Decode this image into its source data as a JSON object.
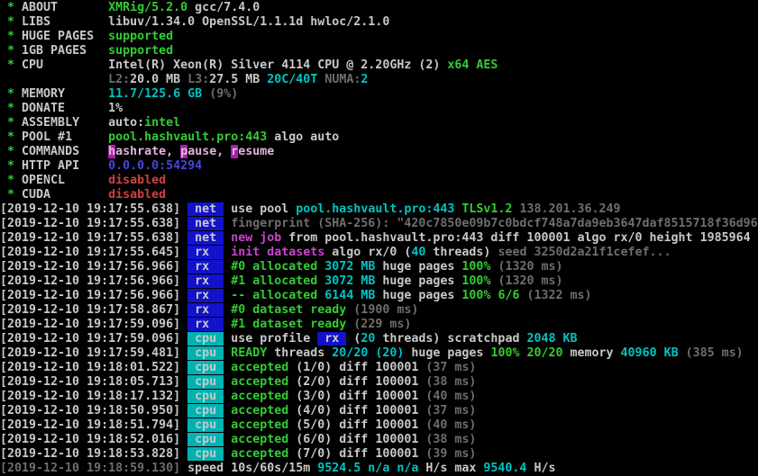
{
  "palette": {
    "white": "#c9c9c9",
    "gray": "#6e6e6e",
    "green": "#33cc33",
    "cyan": "#00c4c4",
    "magenta": "#cc44cc",
    "lightMagenta": "#dcb4dc",
    "red": "#cf4242",
    "blue": "#4646dc",
    "netBadgeBg": "#1212cc",
    "cpuBadgeBg": "#00b3b3",
    "keyBg": "#b517b5"
  },
  "terminal": {
    "app": "xmrig-miner-console",
    "summary_lines": [
      [
        {
          "t": " * ",
          "c": "green"
        },
        {
          "t": "ABOUT       ",
          "c": "white"
        },
        {
          "t": "XMRig/5.2.0",
          "c": "green"
        },
        {
          "t": " gcc/7.4.0",
          "c": "white"
        }
      ],
      [
        {
          "t": " * ",
          "c": "green"
        },
        {
          "t": "LIBS        ",
          "c": "white"
        },
        {
          "t": "libuv/1.34.0 OpenSSL/1.1.1d hwloc/2.1.0",
          "c": "white"
        }
      ],
      [
        {
          "t": " * ",
          "c": "green"
        },
        {
          "t": "HUGE PAGES  ",
          "c": "white"
        },
        {
          "t": "supported",
          "c": "green"
        }
      ],
      [
        {
          "t": " * ",
          "c": "green"
        },
        {
          "t": "1GB PAGES   ",
          "c": "white"
        },
        {
          "t": "supported",
          "c": "green"
        }
      ],
      [
        {
          "t": " * ",
          "c": "green"
        },
        {
          "t": "CPU         ",
          "c": "white"
        },
        {
          "t": "Intel(R) Xeon(R) Silver 4114 CPU @ 2.20GHz (2) ",
          "c": "white"
        },
        {
          "t": "x64 AES",
          "c": "green"
        }
      ],
      [
        {
          "t": "               ",
          "c": "white"
        },
        {
          "t": "L2:",
          "c": "gray"
        },
        {
          "t": "20.0 MB",
          "c": "white"
        },
        {
          "t": " ",
          "c": "white"
        },
        {
          "t": "L3:",
          "c": "gray"
        },
        {
          "t": "27.5 MB",
          "c": "white"
        },
        {
          "t": " ",
          "c": "white"
        },
        {
          "t": "20C/40T",
          "c": "cyan"
        },
        {
          "t": " ",
          "c": "white"
        },
        {
          "t": "NUMA:",
          "c": "gray"
        },
        {
          "t": "2",
          "c": "cyan"
        }
      ],
      [
        {
          "t": " * ",
          "c": "green"
        },
        {
          "t": "MEMORY      ",
          "c": "white"
        },
        {
          "t": "11.7/125.6 GB",
          "c": "cyan"
        },
        {
          "t": " (9%)",
          "c": "gray"
        }
      ],
      [
        {
          "t": " * ",
          "c": "green"
        },
        {
          "t": "DONATE      ",
          "c": "white"
        },
        {
          "t": "1%",
          "c": "white"
        }
      ],
      [
        {
          "t": " * ",
          "c": "green"
        },
        {
          "t": "ASSEMBLY    ",
          "c": "white"
        },
        {
          "t": "auto:",
          "c": "white"
        },
        {
          "t": "intel",
          "c": "green"
        }
      ],
      [
        {
          "t": " * ",
          "c": "green"
        },
        {
          "t": "POOL #1     ",
          "c": "white"
        },
        {
          "t": "pool.hashvault.pro:443",
          "c": "green"
        },
        {
          "t": " algo auto",
          "c": "white"
        }
      ],
      [
        {
          "t": " * ",
          "c": "green"
        },
        {
          "t": "COMMANDS    ",
          "c": "white"
        },
        {
          "t": "h",
          "c": "white",
          "bg": "keyBg",
          "name": "hashrate-command-key"
        },
        {
          "t": "ashrate, ",
          "c": "lightMagenta"
        },
        {
          "t": "p",
          "c": "white",
          "bg": "keyBg",
          "name": "pause-command-key"
        },
        {
          "t": "ause, ",
          "c": "lightMagenta"
        },
        {
          "t": "r",
          "c": "white",
          "bg": "keyBg",
          "name": "resume-command-key"
        },
        {
          "t": "esume",
          "c": "lightMagenta"
        }
      ],
      [
        {
          "t": " * ",
          "c": "green"
        },
        {
          "t": "HTTP API    ",
          "c": "white"
        },
        {
          "t": "0.0.0.0:54294",
          "c": "blue"
        }
      ],
      [
        {
          "t": " * ",
          "c": "green"
        },
        {
          "t": "OPENCL      ",
          "c": "white"
        },
        {
          "t": "disabled",
          "c": "red"
        }
      ],
      [
        {
          "t": " * ",
          "c": "green"
        },
        {
          "t": "CUDA        ",
          "c": "white"
        },
        {
          "t": "disabled",
          "c": "red"
        }
      ]
    ],
    "log_lines": [
      [
        {
          "t": "[2019-12-10 19:17:55.638]",
          "c": "white"
        },
        {
          "t": " ",
          "c": "white"
        },
        {
          "t": " net ",
          "c": "white",
          "bg": "netBadgeBg",
          "name": "net-tag"
        },
        {
          "t": " ",
          "c": "white"
        },
        {
          "t": "use pool ",
          "c": "white"
        },
        {
          "t": "pool.hashvault.pro:443 ",
          "c": "cyan"
        },
        {
          "t": "TLSv1.2 ",
          "c": "green"
        },
        {
          "t": "138.201.36.249",
          "c": "gray"
        }
      ],
      [
        {
          "t": "[2019-12-10 19:17:55.638]",
          "c": "white"
        },
        {
          "t": " ",
          "c": "white"
        },
        {
          "t": " net ",
          "c": "white",
          "bg": "netBadgeBg",
          "name": "net-tag"
        },
        {
          "t": " ",
          "c": "white"
        },
        {
          "t": "fingerprint (SHA-256): \"420c7850e09b7c0bdcf748a7da9eb3647daf8515718f36d96",
          "c": "gray"
        }
      ],
      [
        {
          "t": "[2019-12-10 19:17:55.638]",
          "c": "white"
        },
        {
          "t": " ",
          "c": "white"
        },
        {
          "t": " net ",
          "c": "white",
          "bg": "netBadgeBg",
          "name": "net-tag"
        },
        {
          "t": " ",
          "c": "white"
        },
        {
          "t": "new job",
          "c": "magenta"
        },
        {
          "t": " from pool.hashvault.pro:443 diff 100001 algo rx/0 height 1985964",
          "c": "white"
        }
      ],
      [
        {
          "t": "[2019-12-10 19:17:55.645]",
          "c": "white"
        },
        {
          "t": " ",
          "c": "white"
        },
        {
          "t": " rx  ",
          "c": "white",
          "bg": "netBadgeBg",
          "name": "rx-tag"
        },
        {
          "t": " ",
          "c": "white"
        },
        {
          "t": "init datasets",
          "c": "magenta"
        },
        {
          "t": " algo rx/0 (",
          "c": "white"
        },
        {
          "t": "40",
          "c": "cyan"
        },
        {
          "t": " threads)",
          "c": "white"
        },
        {
          "t": " seed 3250d2a21f1cefef...",
          "c": "gray"
        }
      ],
      [
        {
          "t": "[2019-12-10 19:17:56.966]",
          "c": "white"
        },
        {
          "t": " ",
          "c": "white"
        },
        {
          "t": " rx  ",
          "c": "white",
          "bg": "netBadgeBg",
          "name": "rx-tag"
        },
        {
          "t": " ",
          "c": "white"
        },
        {
          "t": "#0 allocated",
          "c": "green"
        },
        {
          "t": " ",
          "c": "white"
        },
        {
          "t": "3072 MB",
          "c": "cyan"
        },
        {
          "t": " huge pages ",
          "c": "white"
        },
        {
          "t": "100%",
          "c": "green"
        },
        {
          "t": " (1320 ms)",
          "c": "gray"
        }
      ],
      [
        {
          "t": "[2019-12-10 19:17:56.966]",
          "c": "white"
        },
        {
          "t": " ",
          "c": "white"
        },
        {
          "t": " rx  ",
          "c": "white",
          "bg": "netBadgeBg",
          "name": "rx-tag"
        },
        {
          "t": " ",
          "c": "white"
        },
        {
          "t": "#1 allocated",
          "c": "green"
        },
        {
          "t": " ",
          "c": "white"
        },
        {
          "t": "3072 MB",
          "c": "cyan"
        },
        {
          "t": " huge pages ",
          "c": "white"
        },
        {
          "t": "100%",
          "c": "green"
        },
        {
          "t": " (1320 ms)",
          "c": "gray"
        }
      ],
      [
        {
          "t": "[2019-12-10 19:17:56.966]",
          "c": "white"
        },
        {
          "t": " ",
          "c": "white"
        },
        {
          "t": " rx  ",
          "c": "white",
          "bg": "netBadgeBg",
          "name": "rx-tag"
        },
        {
          "t": " ",
          "c": "white"
        },
        {
          "t": "-- allocated",
          "c": "green"
        },
        {
          "t": " ",
          "c": "white"
        },
        {
          "t": "6144 MB",
          "c": "cyan"
        },
        {
          "t": " huge pages ",
          "c": "white"
        },
        {
          "t": "100% 6/6",
          "c": "green"
        },
        {
          "t": " (1322 ms)",
          "c": "gray"
        }
      ],
      [
        {
          "t": "[2019-12-10 19:17:58.867]",
          "c": "white"
        },
        {
          "t": " ",
          "c": "white"
        },
        {
          "t": " rx  ",
          "c": "white",
          "bg": "netBadgeBg",
          "name": "rx-tag"
        },
        {
          "t": " ",
          "c": "white"
        },
        {
          "t": "#0 dataset ready",
          "c": "green"
        },
        {
          "t": " (1900 ms)",
          "c": "gray"
        }
      ],
      [
        {
          "t": "[2019-12-10 19:17:59.096]",
          "c": "white"
        },
        {
          "t": " ",
          "c": "white"
        },
        {
          "t": " rx  ",
          "c": "white",
          "bg": "netBadgeBg",
          "name": "rx-tag"
        },
        {
          "t": " ",
          "c": "white"
        },
        {
          "t": "#1 dataset ready",
          "c": "green"
        },
        {
          "t": " (229 ms)",
          "c": "gray"
        }
      ],
      [
        {
          "t": "[2019-12-10 19:17:59.096]",
          "c": "white"
        },
        {
          "t": " ",
          "c": "white"
        },
        {
          "t": " cpu ",
          "c": "white",
          "bg": "cpuBadgeBg",
          "name": "cpu-tag"
        },
        {
          "t": " ",
          "c": "white"
        },
        {
          "t": "use profile ",
          "c": "white"
        },
        {
          "t": " rx ",
          "c": "white",
          "bg": "netBadgeBg",
          "name": "rx-profile-badge"
        },
        {
          "t": " (",
          "c": "white"
        },
        {
          "t": "20",
          "c": "cyan"
        },
        {
          "t": " threads) scratchpad ",
          "c": "white"
        },
        {
          "t": "2048 KB",
          "c": "cyan"
        }
      ],
      [
        {
          "t": "[2019-12-10 19:17:59.481]",
          "c": "white"
        },
        {
          "t": " ",
          "c": "white"
        },
        {
          "t": " cpu ",
          "c": "white",
          "bg": "cpuBadgeBg",
          "name": "cpu-tag"
        },
        {
          "t": " ",
          "c": "white"
        },
        {
          "t": "READY",
          "c": "green"
        },
        {
          "t": " threads ",
          "c": "white"
        },
        {
          "t": "20/20 (20)",
          "c": "cyan"
        },
        {
          "t": " huge pages ",
          "c": "white"
        },
        {
          "t": "100% 20/20",
          "c": "green"
        },
        {
          "t": " memory ",
          "c": "white"
        },
        {
          "t": "40960 KB",
          "c": "cyan"
        },
        {
          "t": " (385 ms)",
          "c": "gray"
        }
      ],
      [
        {
          "t": "[2019-12-10 19:18:01.522]",
          "c": "white"
        },
        {
          "t": " ",
          "c": "white"
        },
        {
          "t": " cpu ",
          "c": "white",
          "bg": "cpuBadgeBg",
          "name": "cpu-tag"
        },
        {
          "t": " ",
          "c": "white"
        },
        {
          "t": "accepted",
          "c": "green"
        },
        {
          "t": " (1/0) diff 100001",
          "c": "white"
        },
        {
          "t": " (37 ms)",
          "c": "gray"
        }
      ],
      [
        {
          "t": "[2019-12-10 19:18:05.713]",
          "c": "white"
        },
        {
          "t": " ",
          "c": "white"
        },
        {
          "t": " cpu ",
          "c": "white",
          "bg": "cpuBadgeBg",
          "name": "cpu-tag"
        },
        {
          "t": " ",
          "c": "white"
        },
        {
          "t": "accepted",
          "c": "green"
        },
        {
          "t": " (2/0) diff 100001",
          "c": "white"
        },
        {
          "t": " (38 ms)",
          "c": "gray"
        }
      ],
      [
        {
          "t": "[2019-12-10 19:18:17.132]",
          "c": "white"
        },
        {
          "t": " ",
          "c": "white"
        },
        {
          "t": " cpu ",
          "c": "white",
          "bg": "cpuBadgeBg",
          "name": "cpu-tag"
        },
        {
          "t": " ",
          "c": "white"
        },
        {
          "t": "accepted",
          "c": "green"
        },
        {
          "t": " (3/0) diff 100001",
          "c": "white"
        },
        {
          "t": " (40 ms)",
          "c": "gray"
        }
      ],
      [
        {
          "t": "[2019-12-10 19:18:50.950]",
          "c": "white"
        },
        {
          "t": " ",
          "c": "white"
        },
        {
          "t": " cpu ",
          "c": "white",
          "bg": "cpuBadgeBg",
          "name": "cpu-tag"
        },
        {
          "t": " ",
          "c": "white"
        },
        {
          "t": "accepted",
          "c": "green"
        },
        {
          "t": " (4/0) diff 100001",
          "c": "white"
        },
        {
          "t": " (37 ms)",
          "c": "gray"
        }
      ],
      [
        {
          "t": "[2019-12-10 19:18:51.794]",
          "c": "white"
        },
        {
          "t": " ",
          "c": "white"
        },
        {
          "t": " cpu ",
          "c": "white",
          "bg": "cpuBadgeBg",
          "name": "cpu-tag"
        },
        {
          "t": " ",
          "c": "white"
        },
        {
          "t": "accepted",
          "c": "green"
        },
        {
          "t": " (5/0) diff 100001",
          "c": "white"
        },
        {
          "t": " (40 ms)",
          "c": "gray"
        }
      ],
      [
        {
          "t": "[2019-12-10 19:18:52.016]",
          "c": "white"
        },
        {
          "t": " ",
          "c": "white"
        },
        {
          "t": " cpu ",
          "c": "white",
          "bg": "cpuBadgeBg",
          "name": "cpu-tag"
        },
        {
          "t": " ",
          "c": "white"
        },
        {
          "t": "accepted",
          "c": "green"
        },
        {
          "t": " (6/0) diff 100001",
          "c": "white"
        },
        {
          "t": " (38 ms)",
          "c": "gray"
        }
      ],
      [
        {
          "t": "[2019-12-10 19:18:53.828]",
          "c": "white"
        },
        {
          "t": " ",
          "c": "white"
        },
        {
          "t": " cpu ",
          "c": "white",
          "bg": "cpuBadgeBg",
          "name": "cpu-tag"
        },
        {
          "t": " ",
          "c": "white"
        },
        {
          "t": "accepted",
          "c": "green"
        },
        {
          "t": " (7/0) diff 100001",
          "c": "white"
        },
        {
          "t": " (39 ms)",
          "c": "gray"
        }
      ],
      [
        {
          "t": "[2019-12-10 19:18:59.130]",
          "c": "gray"
        },
        {
          "t": " ",
          "c": "white"
        },
        {
          "t": "speed 10s/60s/15m ",
          "c": "white"
        },
        {
          "t": "9524.5 n/a n/a",
          "c": "cyan"
        },
        {
          "t": " H/s max ",
          "c": "white"
        },
        {
          "t": "9540.4",
          "c": "cyan"
        },
        {
          "t": " H/s",
          "c": "white"
        }
      ]
    ]
  }
}
